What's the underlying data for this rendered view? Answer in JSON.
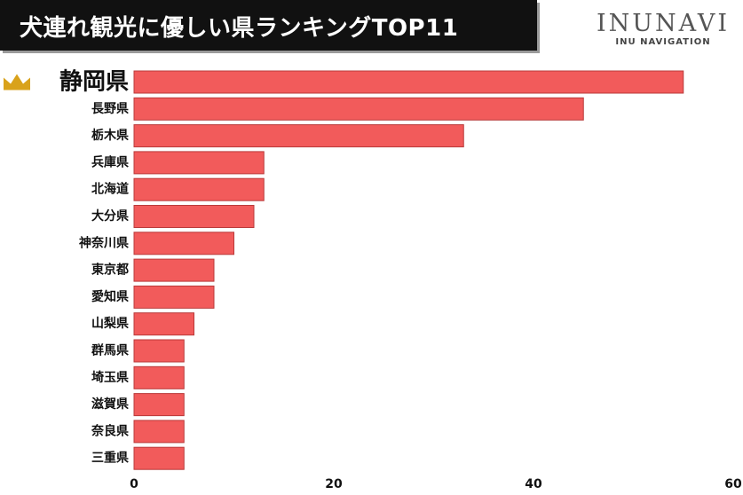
{
  "header": {
    "title": "犬連れ観光に優しい県ランキングTOP11"
  },
  "brand": {
    "name": "INUNAVI",
    "subtitle": "INU NAVIGATION"
  },
  "chart_data": {
    "type": "bar",
    "orientation": "horizontal",
    "title": "犬連れ観光に優しい県ランキングTOP11",
    "categories": [
      "静岡県",
      "長野県",
      "栃木県",
      "兵庫県",
      "北海道",
      "大分県",
      "神奈川県",
      "東京都",
      "愛知県",
      "山梨県",
      "群馬県",
      "埼玉県",
      "滋賀県",
      "奈良県",
      "三重県"
    ],
    "values": [
      55,
      45,
      33,
      13,
      13,
      12,
      10,
      8,
      8,
      6,
      5,
      5,
      5,
      5,
      5
    ],
    "xlim": [
      0,
      60
    ],
    "xticks": [
      0,
      20,
      40,
      60
    ],
    "xlabel": "",
    "ylabel": "",
    "grid": false,
    "bar_color": "#f25b5b",
    "bar_edge_color": "#b93a3a",
    "crown_color": "#d9a21b",
    "highlight_first": true,
    "first_icon": "crown-icon"
  }
}
